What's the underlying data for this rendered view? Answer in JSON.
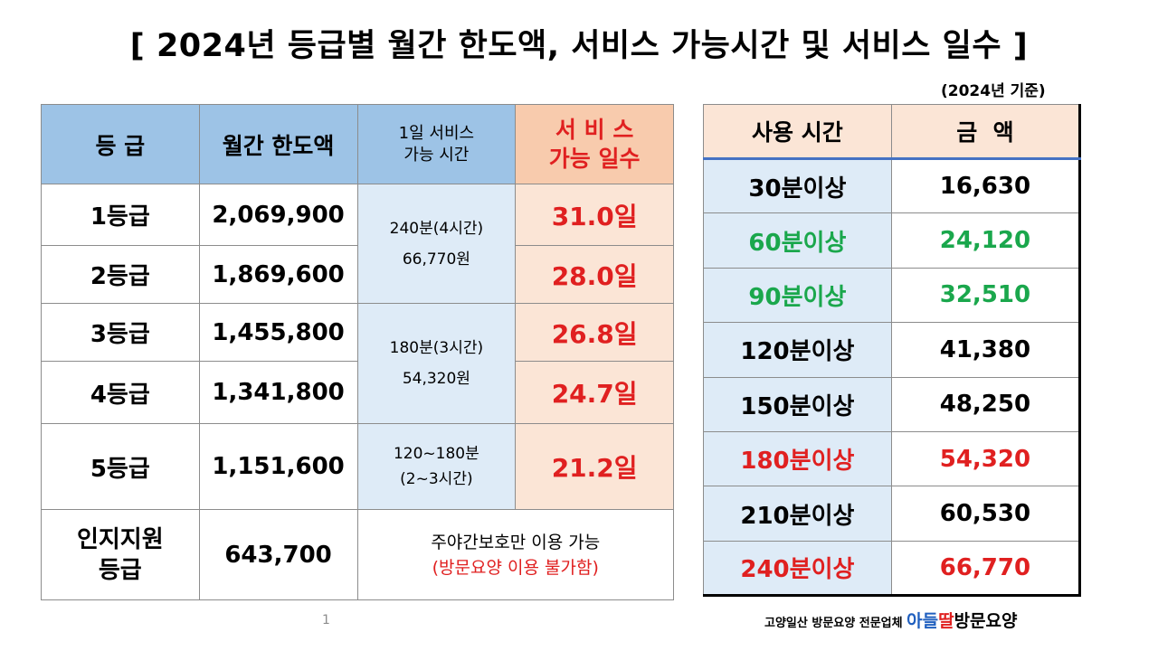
{
  "title": "[ 2024년 등급별 월간 한도액, 서비스 가능시간 및 서비스 일수 ]",
  "basis": "(2024년 기준)",
  "grade_table": {
    "headers": {
      "grade": "등 급",
      "limit": "월간 한도액",
      "svc_line1": "1일 서비스",
      "svc_line2": "가능 시간",
      "days_line1": "서 비 스",
      "days_line2": "가능 일수"
    },
    "rows": [
      {
        "grade": "1등급",
        "limit": "2,069,900",
        "days": "31.0일"
      },
      {
        "grade": "2등급",
        "limit": "1,869,600",
        "days": "28.0일"
      },
      {
        "grade": "3등급",
        "limit": "1,455,800",
        "days": "26.8일"
      },
      {
        "grade": "4등급",
        "limit": "1,341,800",
        "days": "24.7일"
      },
      {
        "grade": "5등급",
        "limit": "1,151,600",
        "days": "21.2일"
      }
    ],
    "svc_groups": [
      {
        "line1": "240분(4시간)",
        "line2": "66,770원"
      },
      {
        "line1": "180분(3시간)",
        "line2": "54,320원"
      },
      {
        "line1": "120~180분",
        "line2": "(2~3시간)"
      }
    ],
    "cognitive": {
      "grade_line1": "인지지원",
      "grade_line2": "등급",
      "limit": "643,700",
      "note_line1": "주야간보호만 이용 가능",
      "note_line2": "(방문요양 이용 불가함)"
    }
  },
  "fee_table": {
    "headers": {
      "time": "사용 시간",
      "amount": "금  액"
    },
    "rows": [
      {
        "time": "30분이상",
        "amount": "16,630",
        "color": "black"
      },
      {
        "time": "60분이상",
        "amount": "24,120",
        "color": "green"
      },
      {
        "time": "90분이상",
        "amount": "32,510",
        "color": "green"
      },
      {
        "time": "120분이상",
        "amount": "41,380",
        "color": "black"
      },
      {
        "time": "150분이상",
        "amount": "48,250",
        "color": "black"
      },
      {
        "time": "180분이상",
        "amount": "54,320",
        "color": "red"
      },
      {
        "time": "210분이상",
        "amount": "60,530",
        "color": "black"
      },
      {
        "time": "240분이상",
        "amount": "66,770",
        "color": "red"
      }
    ]
  },
  "page_number": "1",
  "footer": {
    "prefix": "고양일산 방문요양 전문업체 ",
    "brand_a": "아들",
    "brand_b": "딸",
    "brand_c": "방문요양"
  },
  "colors": {
    "header_blue": "#9dc3e6",
    "light_blue": "#deebf7",
    "peach": "#fbe5d6",
    "red": "#e02020",
    "green": "#1aa74c"
  }
}
